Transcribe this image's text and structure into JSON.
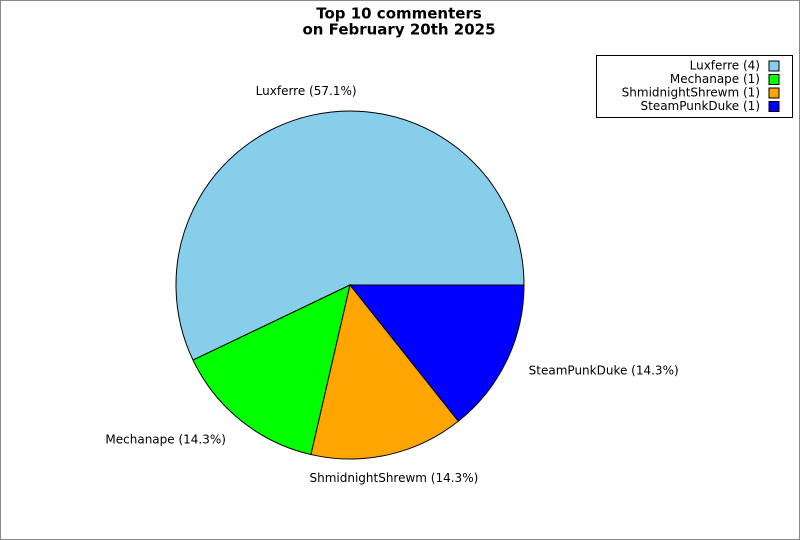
{
  "chart_data": {
    "type": "pie",
    "title": "Top 10 commenters",
    "subtitle": "on February 20th 2025",
    "values": [
      57.1,
      14.3,
      14.3,
      14.3
    ],
    "value_labels": [
      "Luxferre (57.1%)",
      "Mechanape (14.3%)",
      "ShmidnightShrewm (14.3%)",
      "SteamPunkDuke (14.3%)"
    ],
    "legend_labels": [
      "Luxferre (4)",
      "Mechanape (1)",
      "ShmidnightShrewm (1)",
      "SteamPunkDuke (1)"
    ],
    "colors": [
      "#87ceeb",
      "#00ff00",
      "#ffa500",
      "#0000ff"
    ],
    "legend": "upper right"
  }
}
